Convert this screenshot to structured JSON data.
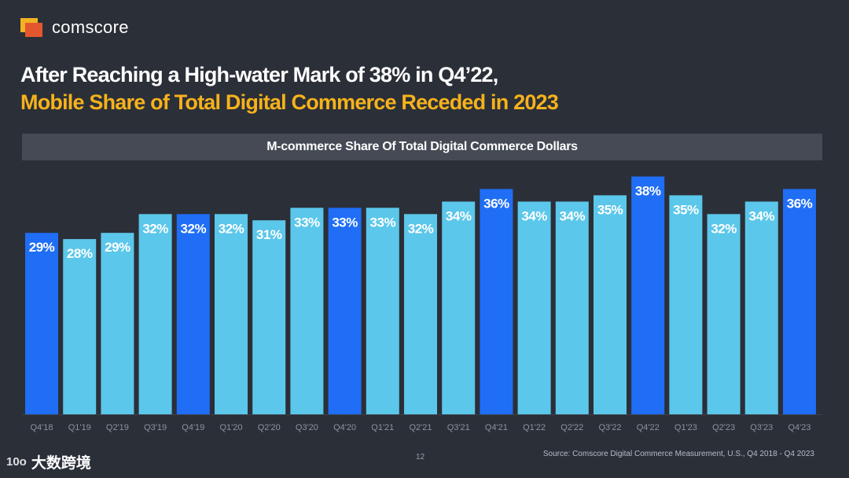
{
  "brand": {
    "name": "comscore"
  },
  "headline": {
    "line1": "After Reaching a High-water Mark of 38% in Q4’22,",
    "line2": "Mobile Share of Total Digital Commerce Receded in 2023"
  },
  "colors": {
    "background": "#2b2f38",
    "highlight_bar": "#1f6ef5",
    "regular_bar": "#5bc7ea",
    "headline_accent": "#f6b21b",
    "label_text": "#ffffff"
  },
  "chart_data": {
    "type": "bar",
    "title": "M-commerce Share Of Total Digital Commerce Dollars",
    "xlabel": "",
    "ylabel": "",
    "ylim": [
      0,
      40
    ],
    "value_format": "percent",
    "categories": [
      "Q4'18",
      "Q1'19",
      "Q2'19",
      "Q3'19",
      "Q4'19",
      "Q1'20",
      "Q2'20",
      "Q3'20",
      "Q4'20",
      "Q1'21",
      "Q2'21",
      "Q3'21",
      "Q4'21",
      "Q1'22",
      "Q2'22",
      "Q3'22",
      "Q4'22",
      "Q1'23",
      "Q2'23",
      "Q3'23",
      "Q4'23"
    ],
    "values": [
      29,
      28,
      29,
      32,
      32,
      32,
      31,
      33,
      33,
      33,
      32,
      34,
      36,
      34,
      34,
      35,
      38,
      35,
      32,
      34,
      36
    ],
    "data_labels": [
      "29%",
      "28%",
      "29%",
      "32%",
      "32%",
      "32%",
      "31%",
      "33%",
      "33%",
      "33%",
      "32%",
      "34%",
      "36%",
      "34%",
      "34%",
      "35%",
      "38%",
      "35%",
      "32%",
      "34%",
      "36%"
    ],
    "highlighted": [
      "Q4'18",
      "Q4'19",
      "Q4'20",
      "Q4'21",
      "Q4'22",
      "Q4'23"
    ]
  },
  "footer": {
    "page_number": "12",
    "source": "Source: Comscore Digital Commerce Measurement, U.S., Q4 2018 - Q4 2023",
    "watermark_mark": "10o",
    "watermark_text": "大数跨境"
  }
}
